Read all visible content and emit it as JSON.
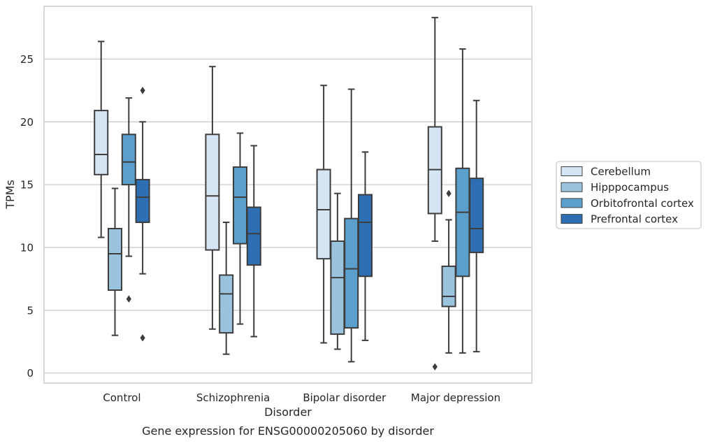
{
  "chart_data": {
    "type": "boxplot",
    "caption": "Gene expression for ENSG00000205060 by disorder",
    "xlabel": "Disorder",
    "ylabel": "TPMs",
    "ylim": [
      -0.8,
      29.2
    ],
    "yticks": [
      0,
      5,
      10,
      15,
      20,
      25
    ],
    "ytick_labels": [
      "0",
      "5",
      "10",
      "15",
      "20",
      "25"
    ],
    "grid": "horizontal",
    "legend_position": "right",
    "categories": [
      "Control",
      "Schizophrenia",
      "Bipolar disorder",
      "Major depression"
    ],
    "series": [
      {
        "name": "Cerebellum",
        "color": "#d6e5f4",
        "boxes": [
          {
            "whislo": 10.8,
            "q1": 15.8,
            "med": 17.4,
            "q3": 20.9,
            "whishi": 26.4,
            "fliers": []
          },
          {
            "whislo": 3.5,
            "q1": 9.8,
            "med": 14.1,
            "q3": 19.0,
            "whishi": 24.4,
            "fliers": []
          },
          {
            "whislo": 2.4,
            "q1": 9.1,
            "med": 13.0,
            "q3": 16.2,
            "whishi": 22.9,
            "fliers": []
          },
          {
            "whislo": 10.5,
            "q1": 12.7,
            "med": 16.2,
            "q3": 19.6,
            "whishi": 28.3,
            "fliers": [
              0.5
            ]
          }
        ]
      },
      {
        "name": "Hipppocampus",
        "color": "#9ac3dd",
        "boxes": [
          {
            "whislo": 3.0,
            "q1": 6.6,
            "med": 9.5,
            "q3": 11.5,
            "whishi": 14.7,
            "fliers": []
          },
          {
            "whislo": 1.5,
            "q1": 3.2,
            "med": 6.3,
            "q3": 7.8,
            "whishi": 12.0,
            "fliers": []
          },
          {
            "whislo": 1.9,
            "q1": 3.1,
            "med": 7.6,
            "q3": 10.5,
            "whishi": 14.3,
            "fliers": []
          },
          {
            "whislo": 1.6,
            "q1": 5.3,
            "med": 6.1,
            "q3": 8.5,
            "whishi": 12.2,
            "fliers": [
              14.3
            ]
          }
        ]
      },
      {
        "name": "Orbitofrontal cortex",
        "color": "#5b9fcc",
        "boxes": [
          {
            "whislo": 9.3,
            "q1": 15.0,
            "med": 16.8,
            "q3": 19.0,
            "whishi": 21.9,
            "fliers": [
              5.9
            ]
          },
          {
            "whislo": 3.9,
            "q1": 10.3,
            "med": 14.0,
            "q3": 16.4,
            "whishi": 19.1,
            "fliers": []
          },
          {
            "whislo": 0.9,
            "q1": 3.6,
            "med": 8.3,
            "q3": 12.3,
            "whishi": 22.6,
            "fliers": []
          },
          {
            "whislo": 1.6,
            "q1": 7.7,
            "med": 12.8,
            "q3": 16.3,
            "whishi": 25.8,
            "fliers": []
          }
        ]
      },
      {
        "name": "Prefrontal cortex",
        "color": "#2e6fb3",
        "boxes": [
          {
            "whislo": 7.9,
            "q1": 12.0,
            "med": 14.0,
            "q3": 15.4,
            "whishi": 20.0,
            "fliers": [
              22.5,
              2.8
            ]
          },
          {
            "whislo": 2.9,
            "q1": 8.6,
            "med": 11.1,
            "q3": 13.2,
            "whishi": 18.1,
            "fliers": []
          },
          {
            "whislo": 2.6,
            "q1": 7.7,
            "med": 12.0,
            "q3": 14.2,
            "whishi": 17.6,
            "fliers": []
          },
          {
            "whislo": 1.7,
            "q1": 9.6,
            "med": 11.5,
            "q3": 15.5,
            "whishi": 21.7,
            "fliers": []
          }
        ]
      }
    ]
  }
}
